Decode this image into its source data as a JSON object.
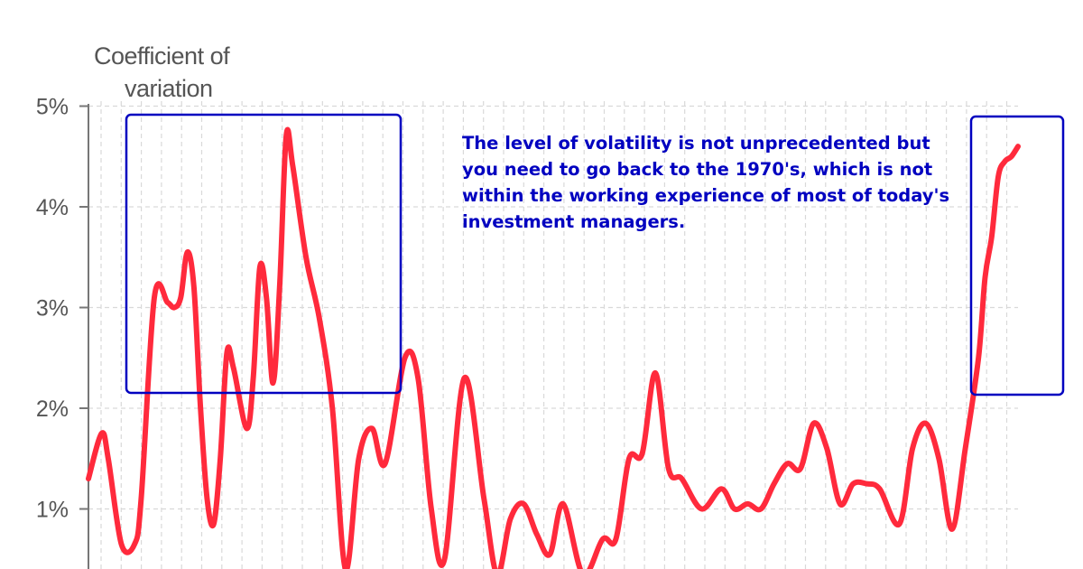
{
  "chart_data": {
    "type": "line",
    "ylabel_line1": "Coefficient of",
    "ylabel_line2": "variation",
    "ylim": [
      0,
      5
    ],
    "yticks": [
      {
        "value": 5,
        "label": "5%"
      },
      {
        "value": 4,
        "label": "4%"
      },
      {
        "value": 3,
        "label": "3%"
      },
      {
        "value": 2,
        "label": "2%"
      },
      {
        "value": 1,
        "label": "1%"
      }
    ],
    "grid": true,
    "series": [
      {
        "color": "#ff2a3c",
        "x": [
          0,
          2,
          3,
          5,
          7,
          8,
          10,
          12,
          13,
          14,
          15,
          16,
          17,
          18,
          19,
          20,
          21,
          22,
          24,
          25,
          26,
          27,
          28,
          29,
          30,
          31,
          33,
          35,
          37,
          39,
          41,
          43,
          45,
          48,
          50,
          52,
          54,
          57,
          60,
          62,
          64,
          66,
          68,
          70,
          72,
          75,
          78,
          80,
          82,
          84,
          86,
          88,
          90,
          93,
          96,
          98,
          100,
          102,
          104,
          106,
          108,
          110,
          112,
          114,
          116,
          118,
          120,
          123,
          125,
          127,
          129,
          131,
          133,
          135,
          136,
          137,
          138,
          139,
          140,
          141
        ],
        "y": [
          1.3,
          1.75,
          1.5,
          0.65,
          0.65,
          1.1,
          3.1,
          3.05,
          3.0,
          3.1,
          3.55,
          3.2,
          2.0,
          1.1,
          0.85,
          1.5,
          2.55,
          2.4,
          1.8,
          2.3,
          3.4,
          3.1,
          2.25,
          3.2,
          4.7,
          4.4,
          3.5,
          2.9,
          2.0,
          0.4,
          1.5,
          1.8,
          1.45,
          2.5,
          2.3,
          1.0,
          0.5,
          2.3,
          1.1,
          0.35,
          0.9,
          1.05,
          0.75,
          0.55,
          1.05,
          0.35,
          0.7,
          0.7,
          1.5,
          1.55,
          2.35,
          1.4,
          1.3,
          1.0,
          1.2,
          1.0,
          1.05,
          1.0,
          1.25,
          1.45,
          1.4,
          1.85,
          1.6,
          1.05,
          1.25,
          1.25,
          1.2,
          0.85,
          1.6,
          1.85,
          1.5,
          0.8,
          1.6,
          2.5,
          3.3,
          3.7,
          4.3,
          4.45,
          4.5,
          4.6
        ]
      }
    ],
    "annotations": {
      "note": "The level of volatility is not unprecedented but you need to go back to the 1970's, which is not within the working experience of most of today's investment managers."
    },
    "highlight_color": "#0000c0"
  }
}
